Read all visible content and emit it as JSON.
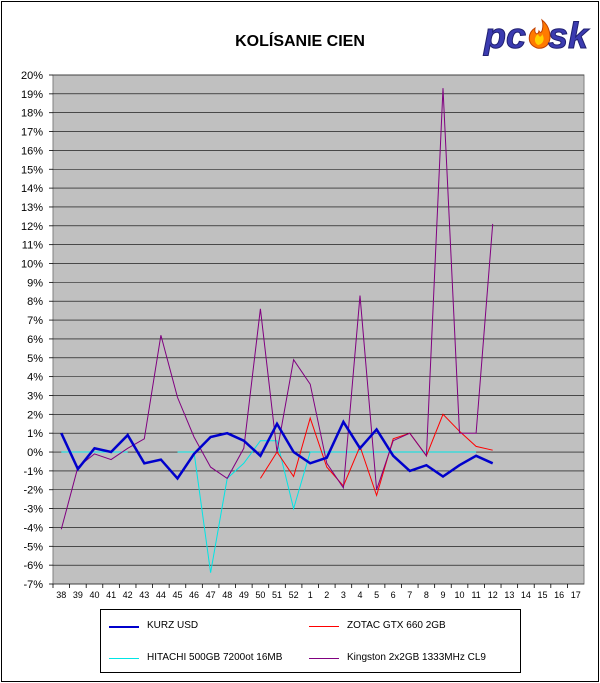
{
  "logo": {
    "text": "pc",
    "text2": "sk"
  },
  "chart_data": {
    "type": "line",
    "title": "KOLÍSANIE CIEN",
    "xlabel": "",
    "ylabel": "",
    "ylim": [
      -7,
      20
    ],
    "y_ticks": [
      "-7%",
      "-6%",
      "-5%",
      "-4%",
      "-3%",
      "-2%",
      "-1%",
      "0%",
      "1%",
      "2%",
      "3%",
      "4%",
      "5%",
      "6%",
      "7%",
      "8%",
      "9%",
      "10%",
      "11%",
      "12%",
      "13%",
      "14%",
      "15%",
      "16%",
      "17%",
      "18%",
      "19%",
      "20%"
    ],
    "categories": [
      "38",
      "39",
      "40",
      "41",
      "42",
      "43",
      "44",
      "45",
      "46",
      "47",
      "48",
      "49",
      "50",
      "51",
      "52",
      "1",
      "2",
      "3",
      "4",
      "5",
      "6",
      "7",
      "8",
      "9",
      "10",
      "11",
      "12",
      "13",
      "14",
      "15",
      "16",
      "17"
    ],
    "grid": true,
    "legend_position": "bottom",
    "series": [
      {
        "name": "KURZ USD",
        "color": "#0000cc",
        "width": 2.5,
        "values": [
          1.0,
          -0.9,
          0.2,
          0.0,
          0.9,
          -0.6,
          -0.4,
          -1.4,
          -0.1,
          0.8,
          1.0,
          0.6,
          -0.2,
          1.5,
          0.0,
          -0.6,
          -0.3,
          1.6,
          0.2,
          1.2,
          -0.2,
          -1.0,
          -0.7,
          -1.3,
          -0.7,
          -0.2,
          -0.6,
          null,
          null,
          null,
          null,
          null
        ]
      },
      {
        "name": "ZOTAC GTX 660 2GB",
        "color": "#ff0000",
        "width": 1,
        "values": [
          null,
          null,
          null,
          null,
          null,
          null,
          null,
          null,
          null,
          null,
          null,
          null,
          -1.4,
          0.0,
          -1.3,
          1.8,
          -0.8,
          -1.8,
          0.3,
          -2.3,
          0.7,
          1.0,
          -0.2,
          2.0,
          1.1,
          0.3,
          0.1,
          null,
          null,
          null,
          null,
          null
        ]
      },
      {
        "name": "HITACHI 500GB 7200ot 16MB",
        "color": "#00e5e5",
        "width": 1,
        "values": [
          0.0,
          0.0,
          0.0,
          0.0,
          0.0,
          null,
          null,
          0.0,
          0.0,
          -6.4,
          -1.4,
          -0.6,
          0.6,
          0.6,
          -3.0,
          0.0,
          0.0,
          0.0,
          0.0,
          0.0,
          0.0,
          0.0,
          0.0,
          0.0,
          0.0,
          0.0,
          null,
          null,
          null,
          null,
          null,
          null
        ]
      },
      {
        "name": "Kingston 2x2GB 1333MHz CL9",
        "color": "#800080",
        "width": 1,
        "values": [
          -4.1,
          -0.8,
          -0.1,
          -0.4,
          0.2,
          0.7,
          6.2,
          2.9,
          0.8,
          -0.8,
          -1.4,
          0.2,
          7.6,
          0.0,
          4.9,
          3.6,
          -0.6,
          -1.9,
          8.3,
          -2.0,
          0.6,
          1.0,
          -0.2,
          19.3,
          1.0,
          1.0,
          12.1,
          null,
          null,
          null,
          null,
          null
        ]
      }
    ]
  }
}
